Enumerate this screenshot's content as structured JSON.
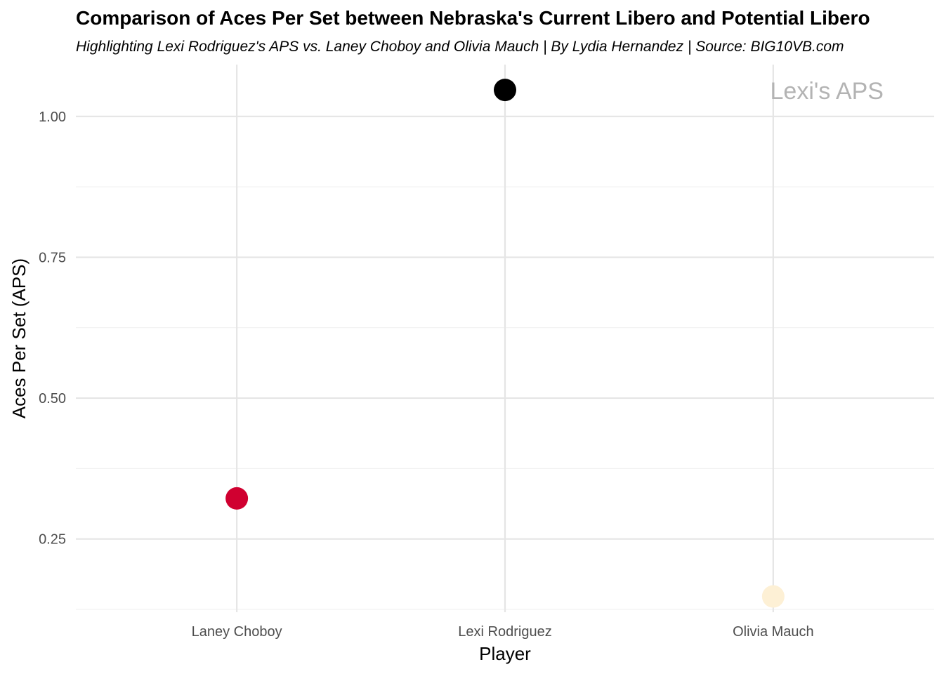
{
  "chart_data": {
    "type": "scatter",
    "title": "Comparison of Aces Per Set between Nebraska's Current Libero and Potential Libero",
    "subtitle": "Highlighting Lexi Rodriguez's APS vs. Laney Choboy and Olivia Mauch | By Lydia Hernandez | Source: BIG10VB.com",
    "xlabel": "Player",
    "ylabel": "Aces Per Set (APS)",
    "categories": [
      "Laney Choboy",
      "Lexi Rodriguez",
      "Olivia Mauch"
    ],
    "values": [
      0.322,
      1.047,
      0.148
    ],
    "point_colors": [
      "#d00030",
      "#000000",
      "#fdf0d5"
    ],
    "ylim": [
      0.12,
      1.092
    ],
    "yticks": [
      0.25,
      0.5,
      0.75,
      1.0
    ],
    "ytick_labels": [
      "0.25",
      "0.50",
      "0.75",
      "1.00"
    ],
    "grid": true,
    "annotation": {
      "text": "Lexi's APS",
      "x": 3.2,
      "y": 1.047,
      "color": "#b3b3b3"
    }
  }
}
